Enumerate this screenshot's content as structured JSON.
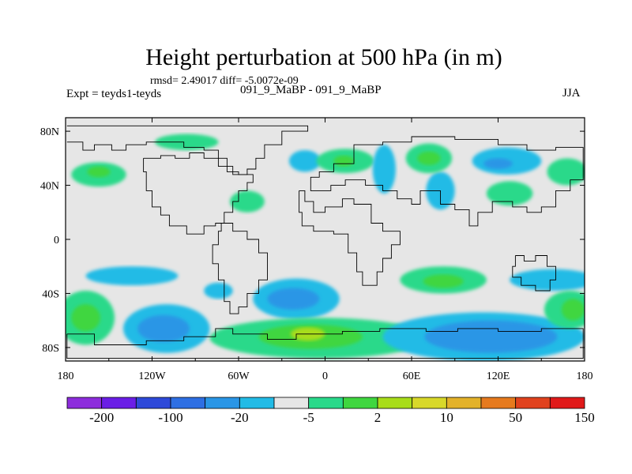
{
  "title": "Height perturbation at 500 hPa (in m)",
  "rmsd_text": "rmsd= 2.49017 diff= -5.0072e-09",
  "left_label": "Expt = teyds1-teyds",
  "center_label": "091_9_MaBP - 091_9_MaBP",
  "right_label": "JJA",
  "chart_data": {
    "type": "contour-map",
    "title": "Height perturbation at 500 hPa (in m)",
    "variable": "Height perturbation at 500 hPa",
    "units": "m",
    "season": "JJA",
    "experiment": "teyds1-teyds",
    "rmsd": 2.49017,
    "diff": -5.0072e-09,
    "lon_range": [
      180,
      540
    ],
    "lat_range": [
      -90,
      90
    ],
    "x_ticks": [
      {
        "lon": 180,
        "label": "180"
      },
      {
        "lon": 240,
        "label": "120W"
      },
      {
        "lon": 300,
        "label": "60W"
      },
      {
        "lon": 360,
        "label": "0"
      },
      {
        "lon": 420,
        "label": "60E"
      },
      {
        "lon": 480,
        "label": "120E"
      },
      {
        "lon": 540,
        "label": "180"
      }
    ],
    "y_ticks": [
      {
        "lat": 80,
        "label": "80N"
      },
      {
        "lat": 40,
        "label": "40N"
      },
      {
        "lat": 0,
        "label": "0"
      },
      {
        "lat": -40,
        "label": "40S"
      },
      {
        "lat": -80,
        "label": "80S"
      }
    ],
    "levels": [
      "-200",
      "-100",
      "-20",
      "-5",
      "2",
      "10",
      "50",
      "150"
    ],
    "colorbar_colors": [
      "#8d2ddc",
      "#6a1ee6",
      "#2e49d9",
      "#2e6fe3",
      "#2a96e6",
      "#22bbe6",
      "#e6e6e6",
      "#2ad98a",
      "#3fd63f",
      "#a8dd1a",
      "#d8d82a",
      "#e3b22a",
      "#e67a1e",
      "#e0421e",
      "#e01a1a"
    ],
    "anomalies": [
      {
        "lon": 203,
        "lat": 48,
        "rx": 19,
        "ry": 9,
        "level": 2,
        "color": "#2ad98a"
      },
      {
        "lon": 203,
        "lat": 50,
        "rx": 8,
        "ry": 4,
        "level": 10,
        "color": "#3fd63f"
      },
      {
        "lon": 264,
        "lat": 72,
        "rx": 22,
        "ry": 6,
        "level": 2,
        "color": "#2ad98a"
      },
      {
        "lon": 306,
        "lat": 28,
        "rx": 12,
        "ry": 8,
        "level": 2,
        "color": "#2ad98a"
      },
      {
        "lon": 346,
        "lat": 58,
        "rx": 11,
        "ry": 8,
        "level": -5,
        "color": "#22bbe6"
      },
      {
        "lon": 374,
        "lat": 58,
        "rx": 20,
        "ry": 9,
        "level": 2,
        "color": "#2ad98a"
      },
      {
        "lon": 373,
        "lat": 58,
        "rx": 7,
        "ry": 4,
        "level": 10,
        "color": "#3fd63f"
      },
      {
        "lon": 401,
        "lat": 52,
        "rx": 8,
        "ry": 18,
        "level": -5,
        "color": "#22bbe6"
      },
      {
        "lon": 440,
        "lat": 36,
        "rx": 10,
        "ry": 14,
        "level": -5,
        "color": "#22bbe6"
      },
      {
        "lon": 432,
        "lat": 60,
        "rx": 16,
        "ry": 11,
        "level": 2,
        "color": "#2ad98a"
      },
      {
        "lon": 432,
        "lat": 60,
        "rx": 8,
        "ry": 5,
        "level": 10,
        "color": "#3fd63f"
      },
      {
        "lon": 486,
        "lat": 58,
        "rx": 24,
        "ry": 10,
        "level": -5,
        "color": "#22bbe6"
      },
      {
        "lon": 480,
        "lat": 56,
        "rx": 10,
        "ry": 4,
        "level": -20,
        "color": "#2a96e6"
      },
      {
        "lon": 488,
        "lat": 34,
        "rx": 16,
        "ry": 9,
        "level": 2,
        "color": "#2ad98a"
      },
      {
        "lon": 528,
        "lat": 50,
        "rx": 14,
        "ry": 10,
        "level": 2,
        "color": "#2ad98a"
      },
      {
        "lon": 226,
        "lat": -27,
        "rx": 32,
        "ry": 7,
        "level": -5,
        "color": "#22bbe6"
      },
      {
        "lon": 286,
        "lat": -38,
        "rx": 10,
        "ry": 6,
        "level": -5,
        "color": "#22bbe6"
      },
      {
        "lon": 340,
        "lat": -44,
        "rx": 30,
        "ry": 15,
        "level": -5,
        "color": "#22bbe6"
      },
      {
        "lon": 338,
        "lat": -44,
        "rx": 18,
        "ry": 8,
        "level": -20,
        "color": "#2a96e6"
      },
      {
        "lon": 442,
        "lat": -30,
        "rx": 30,
        "ry": 10,
        "level": 2,
        "color": "#2ad98a"
      },
      {
        "lon": 442,
        "lat": -31,
        "rx": 14,
        "ry": 5,
        "level": 10,
        "color": "#3fd63f"
      },
      {
        "lon": 250,
        "lat": -66,
        "rx": 30,
        "ry": 18,
        "level": -5,
        "color": "#22bbe6"
      },
      {
        "lon": 248,
        "lat": -66,
        "rx": 18,
        "ry": 10,
        "level": -20,
        "color": "#2a96e6"
      },
      {
        "lon": 194,
        "lat": -58,
        "rx": 20,
        "ry": 20,
        "level": 2,
        "color": "#2ad98a"
      },
      {
        "lon": 194,
        "lat": -58,
        "rx": 10,
        "ry": 10,
        "level": 10,
        "color": "#3fd63f"
      },
      {
        "lon": 356,
        "lat": -73,
        "rx": 76,
        "ry": 15,
        "level": 2,
        "color": "#2ad98a"
      },
      {
        "lon": 350,
        "lat": -72,
        "rx": 36,
        "ry": 9,
        "level": 10,
        "color": "#3fd63f"
      },
      {
        "lon": 348,
        "lat": -70,
        "rx": 12,
        "ry": 5,
        "level": 50,
        "color": "#a8dd1a"
      },
      {
        "lon": 470,
        "lat": -72,
        "rx": 70,
        "ry": 18,
        "level": -5,
        "color": "#22bbe6"
      },
      {
        "lon": 475,
        "lat": -72,
        "rx": 46,
        "ry": 12,
        "level": -20,
        "color": "#2a96e6"
      },
      {
        "lon": 518,
        "lat": -30,
        "rx": 30,
        "ry": 8,
        "level": -5,
        "color": "#22bbe6"
      },
      {
        "lon": 530,
        "lat": -52,
        "rx": 18,
        "ry": 14,
        "level": 2,
        "color": "#2ad98a"
      },
      {
        "lon": 532,
        "lat": -52,
        "rx": 8,
        "ry": 8,
        "level": 10,
        "color": "#3fd63f"
      }
    ],
    "coastlines": [
      [
        [
          181,
          72
        ],
        [
          192,
          72
        ],
        [
          192,
          66
        ],
        [
          200,
          66
        ],
        [
          200,
          70
        ],
        [
          212,
          70
        ],
        [
          212,
          66
        ],
        [
          222,
          66
        ],
        [
          222,
          70
        ],
        [
          236,
          70
        ],
        [
          236,
          72
        ],
        [
          262,
          72
        ],
        [
          262,
          68
        ],
        [
          276,
          68
        ],
        [
          276,
          66
        ],
        [
          286,
          66
        ],
        [
          286,
          60
        ],
        [
          292,
          60
        ],
        [
          292,
          50
        ],
        [
          300,
          50
        ],
        [
          300,
          48
        ],
        [
          306,
          48
        ],
        [
          306,
          52
        ],
        [
          312,
          52
        ],
        [
          312,
          60
        ],
        [
          318,
          60
        ],
        [
          318,
          70
        ],
        [
          330,
          70
        ],
        [
          330,
          80
        ],
        [
          348,
          80
        ],
        [
          348,
          84
        ],
        [
          324,
          84
        ],
        [
          300,
          84
        ],
        [
          282,
          84
        ],
        [
          250,
          84
        ],
        [
          220,
          84
        ],
        [
          200,
          84
        ],
        [
          181,
          84
        ]
      ],
      [
        [
          234,
          60
        ],
        [
          234,
          50
        ],
        [
          236,
          50
        ],
        [
          236,
          36
        ],
        [
          240,
          36
        ],
        [
          240,
          24
        ],
        [
          246,
          24
        ],
        [
          246,
          18
        ],
        [
          252,
          18
        ],
        [
          252,
          10
        ],
        [
          264,
          10
        ],
        [
          264,
          4
        ],
        [
          276,
          4
        ],
        [
          276,
          10
        ],
        [
          284,
          10
        ],
        [
          284,
          12
        ],
        [
          290,
          12
        ],
        [
          290,
          20
        ],
        [
          296,
          20
        ],
        [
          296,
          28
        ],
        [
          300,
          28
        ],
        [
          300,
          36
        ],
        [
          306,
          36
        ],
        [
          306,
          42
        ],
        [
          310,
          42
        ],
        [
          310,
          48
        ],
        [
          300,
          48
        ],
        [
          296,
          48
        ],
        [
          296,
          54
        ],
        [
          286,
          54
        ],
        [
          286,
          60
        ],
        [
          276,
          60
        ],
        [
          276,
          64
        ],
        [
          266,
          64
        ],
        [
          266,
          60
        ],
        [
          256,
          60
        ],
        [
          256,
          62
        ],
        [
          246,
          62
        ],
        [
          246,
          60
        ],
        [
          234,
          60
        ]
      ],
      [
        [
          288,
          12
        ],
        [
          296,
          12
        ],
        [
          296,
          6
        ],
        [
          306,
          6
        ],
        [
          306,
          0
        ],
        [
          314,
          0
        ],
        [
          314,
          -10
        ],
        [
          320,
          -10
        ],
        [
          320,
          -30
        ],
        [
          314,
          -30
        ],
        [
          314,
          -40
        ],
        [
          306,
          -40
        ],
        [
          306,
          -50
        ],
        [
          300,
          -50
        ],
        [
          300,
          -55
        ],
        [
          294,
          -55
        ],
        [
          294,
          -46
        ],
        [
          290,
          -46
        ],
        [
          290,
          -30
        ],
        [
          286,
          -30
        ],
        [
          286,
          -18
        ],
        [
          282,
          -18
        ],
        [
          282,
          -4
        ],
        [
          286,
          -4
        ],
        [
          286,
          6
        ],
        [
          288,
          6
        ],
        [
          288,
          12
        ]
      ],
      [
        [
          342,
          36
        ],
        [
          346,
          36
        ],
        [
          346,
          28
        ],
        [
          352,
          28
        ],
        [
          352,
          20
        ],
        [
          360,
          20
        ],
        [
          360,
          24
        ],
        [
          372,
          24
        ],
        [
          372,
          30
        ],
        [
          380,
          30
        ],
        [
          380,
          26
        ],
        [
          392,
          26
        ],
        [
          392,
          12
        ],
        [
          400,
          12
        ],
        [
          400,
          6
        ],
        [
          412,
          6
        ],
        [
          412,
          -4
        ],
        [
          406,
          -4
        ],
        [
          406,
          -14
        ],
        [
          400,
          -14
        ],
        [
          400,
          -24
        ],
        [
          396,
          -24
        ],
        [
          396,
          -34
        ],
        [
          386,
          -34
        ],
        [
          386,
          -24
        ],
        [
          382,
          -24
        ],
        [
          382,
          -10
        ],
        [
          376,
          -10
        ],
        [
          376,
          4
        ],
        [
          366,
          4
        ],
        [
          366,
          6
        ],
        [
          352,
          6
        ],
        [
          352,
          10
        ],
        [
          344,
          10
        ],
        [
          344,
          20
        ],
        [
          342,
          20
        ],
        [
          342,
          36
        ]
      ],
      [
        [
          350,
          38
        ],
        [
          350,
          46
        ],
        [
          356,
          46
        ],
        [
          356,
          50
        ],
        [
          366,
          50
        ],
        [
          366,
          56
        ],
        [
          380,
          56
        ],
        [
          380,
          70
        ],
        [
          400,
          70
        ],
        [
          400,
          72
        ],
        [
          420,
          72
        ],
        [
          420,
          76
        ],
        [
          450,
          76
        ],
        [
          450,
          74
        ],
        [
          480,
          74
        ],
        [
          480,
          70
        ],
        [
          500,
          70
        ],
        [
          500,
          66
        ],
        [
          520,
          66
        ],
        [
          520,
          68
        ],
        [
          539,
          68
        ],
        [
          539,
          44
        ],
        [
          530,
          44
        ],
        [
          530,
          36
        ],
        [
          520,
          36
        ],
        [
          520,
          24
        ],
        [
          510,
          24
        ],
        [
          510,
          20
        ],
        [
          500,
          20
        ],
        [
          500,
          24
        ],
        [
          490,
          24
        ],
        [
          490,
          28
        ],
        [
          476,
          28
        ],
        [
          476,
          20
        ],
        [
          466,
          20
        ],
        [
          466,
          10
        ],
        [
          460,
          10
        ],
        [
          460,
          22
        ],
        [
          450,
          22
        ],
        [
          450,
          26
        ],
        [
          440,
          26
        ],
        [
          440,
          36
        ],
        [
          426,
          36
        ],
        [
          426,
          26
        ],
        [
          420,
          26
        ],
        [
          420,
          30
        ],
        [
          410,
          30
        ],
        [
          410,
          36
        ],
        [
          400,
          36
        ],
        [
          400,
          40
        ],
        [
          388,
          40
        ],
        [
          388,
          44
        ],
        [
          374,
          44
        ],
        [
          374,
          40
        ],
        [
          364,
          40
        ],
        [
          364,
          36
        ],
        [
          350,
          36
        ],
        [
          350,
          38
        ]
      ],
      [
        [
          492,
          -12
        ],
        [
          498,
          -12
        ],
        [
          498,
          -16
        ],
        [
          506,
          -16
        ],
        [
          506,
          -12
        ],
        [
          514,
          -12
        ],
        [
          514,
          -20
        ],
        [
          520,
          -20
        ],
        [
          520,
          -30
        ],
        [
          516,
          -30
        ],
        [
          516,
          -38
        ],
        [
          506,
          -38
        ],
        [
          506,
          -34
        ],
        [
          496,
          -34
        ],
        [
          496,
          -28
        ],
        [
          490,
          -28
        ],
        [
          490,
          -20
        ],
        [
          492,
          -20
        ],
        [
          492,
          -12
        ]
      ],
      [
        [
          181,
          -70
        ],
        [
          200,
          -70
        ],
        [
          200,
          -78
        ],
        [
          236,
          -78
        ],
        [
          236,
          -75
        ],
        [
          262,
          -75
        ],
        [
          262,
          -72
        ],
        [
          284,
          -72
        ],
        [
          284,
          -66
        ],
        [
          296,
          -66
        ],
        [
          296,
          -70
        ],
        [
          320,
          -70
        ],
        [
          320,
          -74
        ],
        [
          340,
          -74
        ],
        [
          340,
          -70
        ],
        [
          372,
          -70
        ],
        [
          372,
          -68
        ],
        [
          398,
          -68
        ],
        [
          398,
          -66
        ],
        [
          430,
          -66
        ],
        [
          430,
          -68
        ],
        [
          452,
          -68
        ],
        [
          452,
          -66
        ],
        [
          480,
          -66
        ],
        [
          480,
          -68
        ],
        [
          510,
          -68
        ],
        [
          510,
          -66
        ],
        [
          539,
          -66
        ],
        [
          539,
          -88
        ],
        [
          181,
          -88
        ],
        [
          181,
          -70
        ]
      ]
    ]
  }
}
